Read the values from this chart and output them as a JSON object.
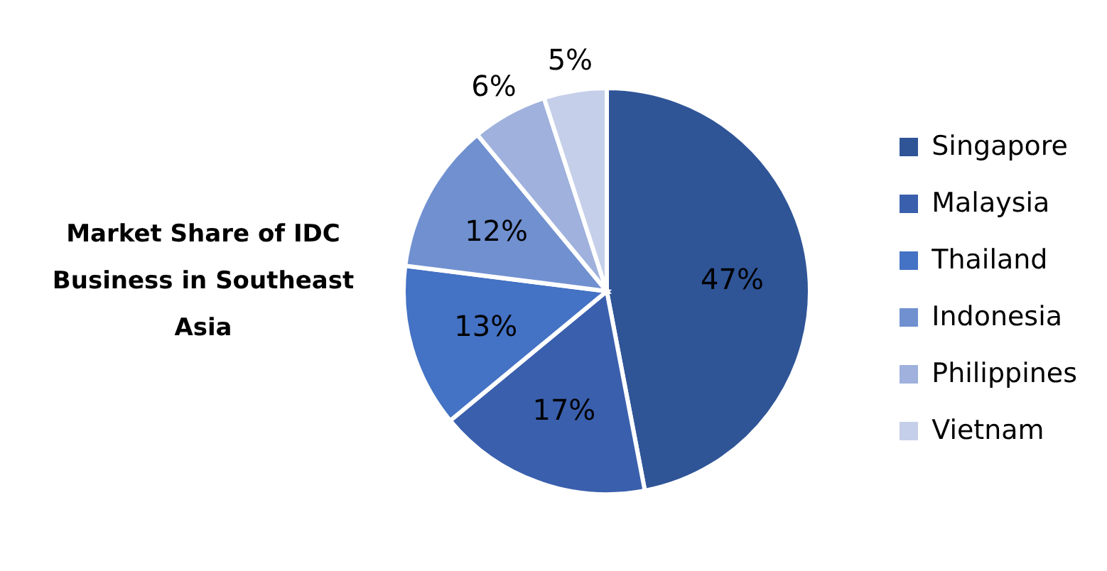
{
  "chart_data": {
    "type": "pie",
    "title": "Market Share of IDC Business in Southeast Asia",
    "categories": [
      "Singapore",
      "Malaysia",
      "Thailand",
      "Indonesia",
      "Philippines",
      "Vietnam"
    ],
    "values": [
      47,
      17,
      13,
      12,
      6,
      5
    ],
    "colors": [
      "#2f5597",
      "#3a5fad",
      "#4472c4",
      "#7090d0",
      "#9fb1dc",
      "#c5cfe9"
    ],
    "value_labels": [
      "47%",
      "17%",
      "13%",
      "12%",
      "6%",
      "5%"
    ],
    "legend": "right"
  }
}
